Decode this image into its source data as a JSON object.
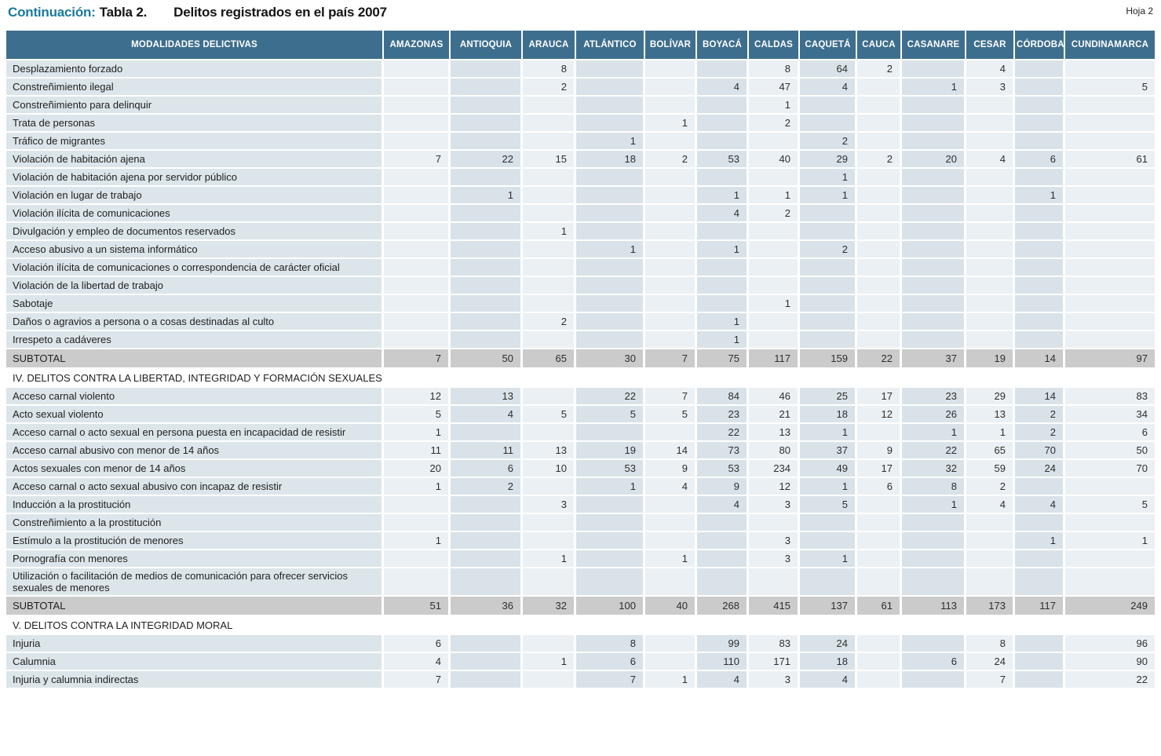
{
  "page": {
    "continuation_label": "Continuación:",
    "table_label": "Tabla 2.",
    "title": "Delitos registrados en el país 2007",
    "sheet_label": "Hoja 2"
  },
  "colors": {
    "header_bg": "#3e6e8e",
    "accent_teal": "#1b7a9c",
    "column_light": "#ebf0f4",
    "column_dark": "#d9e2e8",
    "label_column": "#dce5ea",
    "subtotal_gray": "#cbcbcb"
  },
  "table": {
    "label_header": "MODALIDADES DELICTIVAS",
    "columns": [
      "AMAZONAS",
      "ANTIOQUIA",
      "ARAUCA",
      "ATLÁNTICO",
      "BOLÍVAR",
      "BOYACÁ",
      "CALDAS",
      "CAQUETÁ",
      "CAUCA",
      "CASANARE",
      "CESAR",
      "CÓRDOBA",
      "CUNDINAMARCA"
    ],
    "rows": [
      {
        "type": "data",
        "label": "Desplazamiento forzado",
        "values": [
          "",
          "",
          "8",
          "",
          "",
          "",
          "8",
          "64",
          "2",
          "",
          "4",
          "",
          ""
        ]
      },
      {
        "type": "data",
        "label": "Constreñimiento ilegal",
        "values": [
          "",
          "",
          "2",
          "",
          "",
          "4",
          "47",
          "4",
          "",
          "1",
          "3",
          "",
          "5"
        ]
      },
      {
        "type": "data",
        "label": "Constreñimiento para delinquir",
        "values": [
          "",
          "",
          "",
          "",
          "",
          "",
          "1",
          "",
          "",
          "",
          "",
          "",
          ""
        ]
      },
      {
        "type": "data",
        "label": "Trata de personas",
        "values": [
          "",
          "",
          "",
          "",
          "1",
          "",
          "2",
          "",
          "",
          "",
          "",
          "",
          ""
        ]
      },
      {
        "type": "data",
        "label": "Tráfico de migrantes",
        "values": [
          "",
          "",
          "",
          "1",
          "",
          "",
          "",
          "2",
          "",
          "",
          "",
          "",
          ""
        ]
      },
      {
        "type": "data",
        "label": "Violación de habitación ajena",
        "values": [
          "7",
          "22",
          "15",
          "18",
          "2",
          "53",
          "40",
          "29",
          "2",
          "20",
          "4",
          "6",
          "61"
        ]
      },
      {
        "type": "data",
        "label": "Violación de habitación ajena por servidor público",
        "values": [
          "",
          "",
          "",
          "",
          "",
          "",
          "",
          "1",
          "",
          "",
          "",
          "",
          ""
        ]
      },
      {
        "type": "data",
        "label": "Violación en lugar de trabajo",
        "values": [
          "",
          "1",
          "",
          "",
          "",
          "1",
          "1",
          "1",
          "",
          "",
          "",
          "1",
          ""
        ]
      },
      {
        "type": "data",
        "label": "Violación ilícita de comunicaciones",
        "values": [
          "",
          "",
          "",
          "",
          "",
          "4",
          "2",
          "",
          "",
          "",
          "",
          "",
          ""
        ]
      },
      {
        "type": "data",
        "label": "Divulgación y empleo de documentos reservados",
        "values": [
          "",
          "",
          "1",
          "",
          "",
          "",
          "",
          "",
          "",
          "",
          "",
          "",
          ""
        ]
      },
      {
        "type": "data",
        "label": "Acceso abusivo a un sistema informático",
        "values": [
          "",
          "",
          "",
          "1",
          "",
          "1",
          "",
          "2",
          "",
          "",
          "",
          "",
          ""
        ]
      },
      {
        "type": "data",
        "label": "Violación ilícita de comunicaciones o correspondencia de carácter oficial",
        "values": [
          "",
          "",
          "",
          "",
          "",
          "",
          "",
          "",
          "",
          "",
          "",
          "",
          ""
        ]
      },
      {
        "type": "data",
        "label": "Violación de la libertad de trabajo",
        "values": [
          "",
          "",
          "",
          "",
          "",
          "",
          "",
          "",
          "",
          "",
          "",
          "",
          ""
        ]
      },
      {
        "type": "data",
        "label": "Sabotaje",
        "values": [
          "",
          "",
          "",
          "",
          "",
          "",
          "1",
          "",
          "",
          "",
          "",
          "",
          ""
        ]
      },
      {
        "type": "data",
        "label": "Daños o agravios a persona o a cosas destinadas al culto",
        "values": [
          "",
          "",
          "2",
          "",
          "",
          "1",
          "",
          "",
          "",
          "",
          "",
          "",
          ""
        ]
      },
      {
        "type": "data",
        "label": "Irrespeto a cadáveres",
        "values": [
          "",
          "",
          "",
          "",
          "",
          "1",
          "",
          "",
          "",
          "",
          "",
          "",
          ""
        ]
      },
      {
        "type": "subtotal",
        "label": "SUBTOTAL",
        "values": [
          "7",
          "50",
          "65",
          "30",
          "7",
          "75",
          "117",
          "159",
          "22",
          "37",
          "19",
          "14",
          "97"
        ]
      },
      {
        "type": "section",
        "label": "IV. DELITOS CONTRA LA LIBERTAD, INTEGRIDAD Y FORMACIÓN SEXUALES"
      },
      {
        "type": "data",
        "label": "Acceso carnal violento",
        "values": [
          "12",
          "13",
          "",
          "22",
          "7",
          "84",
          "46",
          "25",
          "17",
          "23",
          "29",
          "14",
          "83"
        ]
      },
      {
        "type": "data",
        "label": "Acto sexual violento",
        "values": [
          "5",
          "4",
          "5",
          "5",
          "5",
          "23",
          "21",
          "18",
          "12",
          "26",
          "13",
          "2",
          "34"
        ]
      },
      {
        "type": "data",
        "label": "Acceso carnal o acto sexual en persona puesta en incapacidad de resistir",
        "values": [
          "1",
          "",
          "",
          "",
          "",
          "22",
          "13",
          "1",
          "",
          "1",
          "1",
          "2",
          "6"
        ]
      },
      {
        "type": "data",
        "label": "Acceso carnal abusivo con menor de 14 años",
        "values": [
          "11",
          "11",
          "13",
          "19",
          "14",
          "73",
          "80",
          "37",
          "9",
          "22",
          "65",
          "70",
          "50"
        ]
      },
      {
        "type": "data",
        "label": "Actos sexuales con menor de 14 años",
        "values": [
          "20",
          "6",
          "10",
          "53",
          "9",
          "53",
          "234",
          "49",
          "17",
          "32",
          "59",
          "24",
          "70"
        ]
      },
      {
        "type": "data",
        "label": "Acceso carnal o acto sexual abusivo con incapaz de resistir",
        "values": [
          "1",
          "2",
          "",
          "1",
          "4",
          "9",
          "12",
          "1",
          "6",
          "8",
          "2",
          "",
          ""
        ]
      },
      {
        "type": "data",
        "label": "Inducción a la prostitución",
        "values": [
          "",
          "",
          "3",
          "",
          "",
          "4",
          "3",
          "5",
          "",
          "1",
          "4",
          "4",
          "5"
        ]
      },
      {
        "type": "data",
        "label": "Constreñimiento a la prostitución",
        "values": [
          "",
          "",
          "",
          "",
          "",
          "",
          "",
          "",
          "",
          "",
          "",
          "",
          ""
        ]
      },
      {
        "type": "data",
        "label": "Estímulo a la prostitución de menores",
        "values": [
          "1",
          "",
          "",
          "",
          "",
          "",
          "3",
          "",
          "",
          "",
          "",
          "1",
          "1"
        ]
      },
      {
        "type": "data",
        "label": "Pornografía con menores",
        "values": [
          "",
          "",
          "1",
          "",
          "1",
          "",
          "3",
          "1",
          "",
          "",
          "",
          "",
          ""
        ]
      },
      {
        "type": "data",
        "label": "Utilización o facilitación de medios de comunicación para ofrecer servicios sexuales de menores",
        "values": [
          "",
          "",
          "",
          "",
          "",
          "",
          "",
          "",
          "",
          "",
          "",
          "",
          ""
        ]
      },
      {
        "type": "subtotal",
        "label": "SUBTOTAL",
        "values": [
          "51",
          "36",
          "32",
          "100",
          "40",
          "268",
          "415",
          "137",
          "61",
          "113",
          "173",
          "117",
          "249"
        ]
      },
      {
        "type": "section",
        "label": "V. DELITOS CONTRA LA INTEGRIDAD MORAL"
      },
      {
        "type": "data",
        "label": "Injuria",
        "values": [
          "6",
          "",
          "",
          "8",
          "",
          "99",
          "83",
          "24",
          "",
          "",
          "8",
          "",
          "96"
        ]
      },
      {
        "type": "data",
        "label": "Calumnia",
        "values": [
          "4",
          "",
          "1",
          "6",
          "",
          "110",
          "171",
          "18",
          "",
          "6",
          "24",
          "",
          "90"
        ]
      },
      {
        "type": "data",
        "label": "Injuria y calumnia indirectas",
        "values": [
          "7",
          "",
          "",
          "7",
          "1",
          "4",
          "3",
          "4",
          "",
          "",
          "7",
          "",
          "22"
        ]
      }
    ]
  }
}
